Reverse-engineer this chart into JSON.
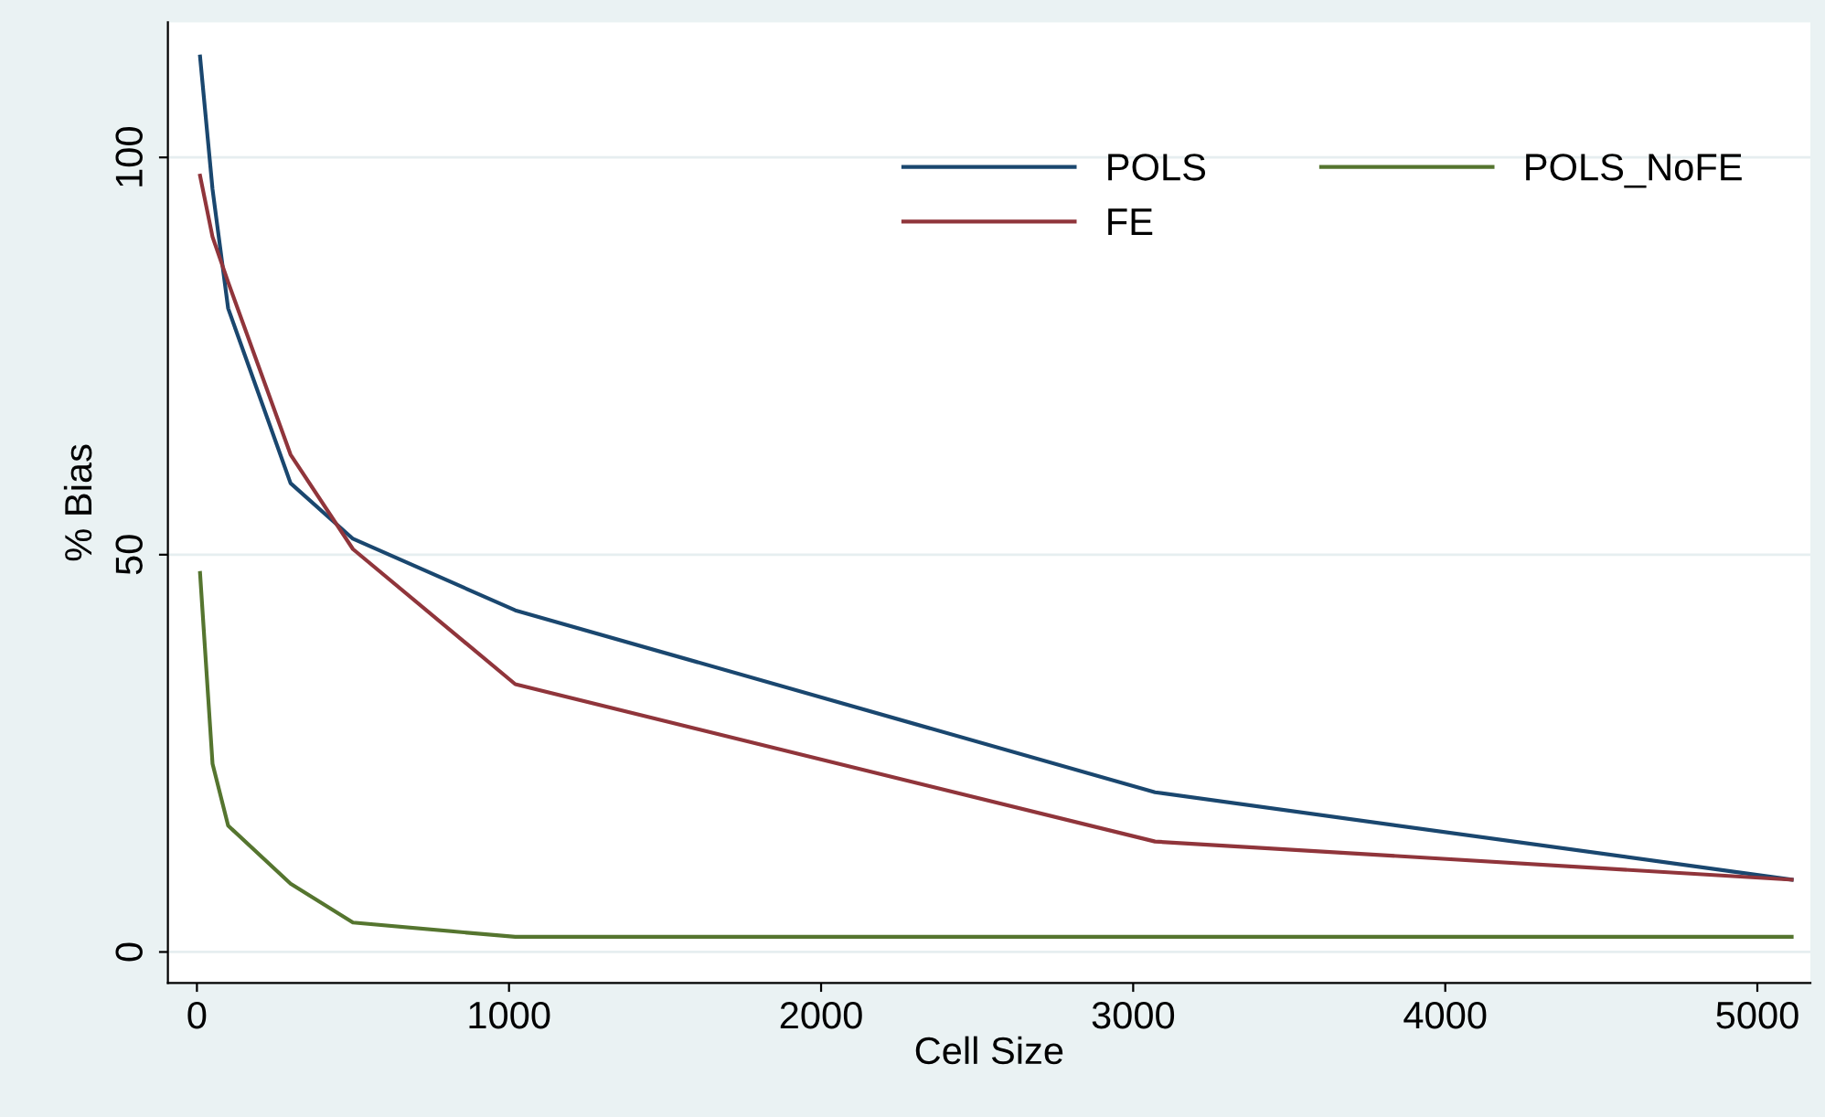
{
  "chart_data": {
    "type": "line",
    "xlabel": "Cell Size",
    "ylabel": "% Bias",
    "x": [
      10,
      50,
      100,
      300,
      500,
      1020,
      3070,
      5110
    ],
    "series": [
      {
        "name": "POLS",
        "color": "#1a476f",
        "values": [
          112.7,
          96,
          81,
          59,
          52,
          43,
          20.1,
          9.1
        ]
      },
      {
        "name": "FE",
        "color": "#90353b",
        "values": [
          97.7,
          90,
          84.3,
          62.6,
          50.7,
          33.7,
          13.9,
          9.1
        ]
      },
      {
        "name": "POLS_NoFE",
        "color": "#55752f",
        "values": [
          47.7,
          23.7,
          15.9,
          8.6,
          3.7,
          1.9,
          1.9,
          1.9
        ]
      }
    ],
    "xlim": [
      -93,
      5170
    ],
    "ylim": [
      -3.9,
      117
    ],
    "xticks": [
      0,
      1000,
      2000,
      3000,
      4000,
      5000
    ],
    "yticks": [
      0,
      50,
      100
    ],
    "grid": "y",
    "legend": "top right",
    "marker": "none",
    "line_style": "solid"
  }
}
